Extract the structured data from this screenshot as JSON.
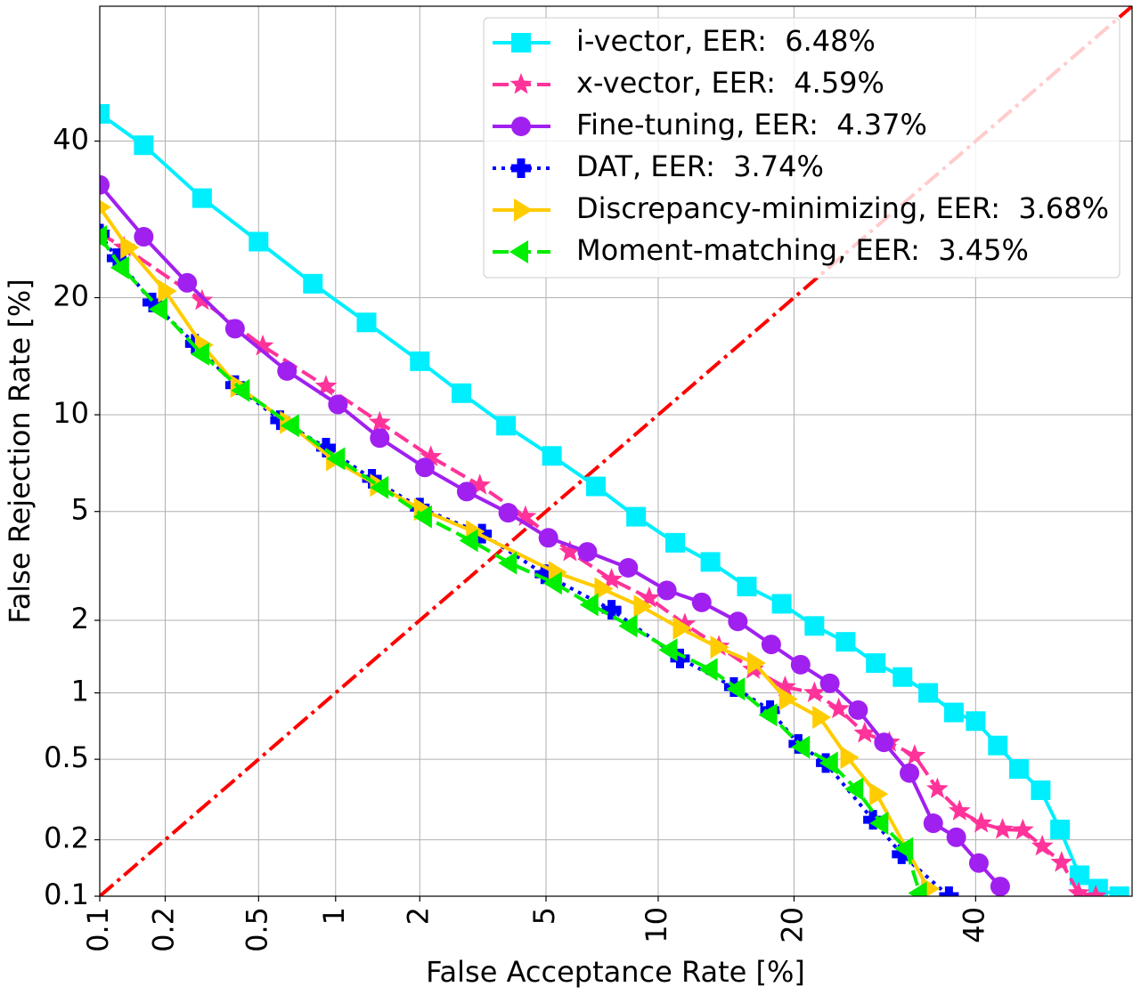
{
  "chart_data": {
    "type": "line",
    "xscale": "probit",
    "yscale": "probit",
    "xlabel": "False Acceptance Rate [%]",
    "ylabel": "False Rejection Rate [%]",
    "xlim": [
      0.1,
      60
    ],
    "ylim": [
      0.1,
      60
    ],
    "xticks": [
      0.1,
      0.2,
      0.5,
      1,
      2,
      5,
      10,
      20,
      40
    ],
    "yticks": [
      0.1,
      0.2,
      0.5,
      1,
      2,
      5,
      10,
      20,
      40
    ],
    "grid": true,
    "legend": "upper right",
    "reference_line": {
      "color": "#ff0000",
      "linestyle": "dashdot",
      "x": [
        0.1,
        60
      ],
      "values": [
        0.1,
        60
      ]
    },
    "series": [
      {
        "name": "i-vector, EER:  6.48%",
        "color": "#00efff",
        "marker": "square",
        "linestyle": "solid",
        "x": [
          0.1,
          0.16,
          0.29,
          0.5,
          0.82,
          1.3,
          2,
          2.75,
          3.8,
          5.2,
          6.9,
          8.8,
          11,
          13.3,
          16,
          18.9,
          21.9,
          25,
          28.2,
          31.2,
          34.2,
          37.3,
          40,
          42.8,
          45.5,
          48.3,
          50.8,
          53.3,
          55.7,
          58.4
        ],
        "values": [
          44,
          39.4,
          32,
          26.4,
          21.5,
          17.5,
          14,
          11.5,
          9.3,
          7.55,
          6.05,
          4.8,
          3.9,
          3.33,
          2.7,
          2.32,
          1.9,
          1.64,
          1.34,
          1.17,
          1.0,
          0.82,
          0.75,
          0.58,
          0.45,
          0.355,
          0.226,
          0.13,
          0.11,
          0.1
        ]
      },
      {
        "name": "x-vector, EER:  4.59%",
        "color": "#ff3399",
        "marker": "star",
        "linestyle": "dashed",
        "x": [
          0.1,
          0.13,
          0.29,
          0.52,
          0.92,
          1.45,
          2.18,
          3.15,
          4.35,
          5.85,
          7.6,
          9.5,
          11.6,
          13.9,
          16.5,
          19.2,
          21.9,
          24.3,
          27,
          29.7,
          32.6,
          35.3,
          38,
          40.7,
          43.4,
          46,
          48.5,
          51,
          53.2,
          55.4
        ],
        "values": [
          27.4,
          25.7,
          19.7,
          15.3,
          12,
          9.5,
          7.5,
          6.1,
          4.8,
          3.62,
          2.87,
          2.44,
          1.93,
          1.57,
          1.26,
          1.06,
          1.0,
          0.85,
          0.66,
          0.6,
          0.52,
          0.36,
          0.28,
          0.243,
          0.226,
          0.224,
          0.185,
          0.152,
          0.104,
          0.1
        ]
      },
      {
        "name": "Fine-tuning, EER:  4.37%",
        "color": "#a020f0",
        "marker": "circle",
        "linestyle": "solid",
        "x": [
          0.1,
          0.16,
          0.25,
          0.4,
          0.65,
          1.02,
          1.45,
          2.08,
          2.86,
          3.86,
          5.08,
          6.54,
          8.4,
          10.5,
          12.7,
          15.3,
          18,
          20.6,
          23.4,
          26.3,
          29.1,
          32,
          34.8,
          37.6,
          40.4,
          43.1
        ],
        "values": [
          33.8,
          27,
          21.6,
          16.9,
          13.2,
          10.7,
          8.55,
          6.95,
          5.82,
          4.95,
          4.06,
          3.62,
          3.17,
          2.61,
          2.35,
          1.98,
          1.6,
          1.32,
          1.1,
          0.84,
          0.6,
          0.43,
          0.243,
          0.206,
          0.151,
          0.113
        ]
      },
      {
        "name": "DAT, EER:  3.74%",
        "color": "#0000ff",
        "marker": "plus",
        "linestyle": "dotted",
        "x": [
          0.1,
          0.12,
          0.175,
          0.27,
          0.4,
          0.61,
          0.92,
          1.36,
          2.0,
          3.2,
          4.95,
          7.6,
          11.3,
          15,
          17.9,
          20.4,
          23,
          27.9,
          31.1,
          36.7
        ],
        "values": [
          27.4,
          24.4,
          19.5,
          15.5,
          12.1,
          9.65,
          8.0,
          6.4,
          5.15,
          4.2,
          3.0,
          2.2,
          1.4,
          1.06,
          0.84,
          0.59,
          0.48,
          0.253,
          0.168,
          0.1
        ]
      },
      {
        "name": "Discrepancy-minimizing, EER:  3.68%",
        "color": "#ffcc00",
        "marker": "triangle-right",
        "linestyle": "solid",
        "x": [
          0.1,
          0.135,
          0.2,
          0.29,
          0.41,
          0.65,
          0.98,
          1.42,
          2.02,
          3.0,
          5.33,
          7.15,
          9.05,
          11.3,
          13.8,
          16.6,
          19.3,
          22.4,
          25.2,
          28.3,
          34.2
        ],
        "values": [
          30.8,
          25.7,
          20.7,
          15.4,
          12,
          9.5,
          7.35,
          6.1,
          5.08,
          4.27,
          3.05,
          2.65,
          2.27,
          1.86,
          1.56,
          1.34,
          0.94,
          0.78,
          0.51,
          0.34,
          0.11
        ]
      },
      {
        "name": "Moment-matching, EER:  3.45%",
        "color": "#00ee00",
        "marker": "triangle-left",
        "linestyle": "dashed",
        "x": [
          0.1,
          0.127,
          0.19,
          0.29,
          0.43,
          0.68,
          1.02,
          1.47,
          2.08,
          2.95,
          3.9,
          5.3,
          6.7,
          8.5,
          10.7,
          13.3,
          15.3,
          17.9,
          20.8,
          23.5,
          26.1,
          28.8,
          31.6,
          33.2
        ],
        "values": [
          27,
          23.3,
          18.8,
          14.6,
          11.7,
          9.3,
          7.4,
          6.0,
          4.8,
          3.97,
          3.3,
          2.78,
          2.3,
          1.9,
          1.52,
          1.26,
          1.04,
          0.8,
          0.57,
          0.48,
          0.36,
          0.243,
          0.18,
          0.104
        ]
      }
    ]
  }
}
